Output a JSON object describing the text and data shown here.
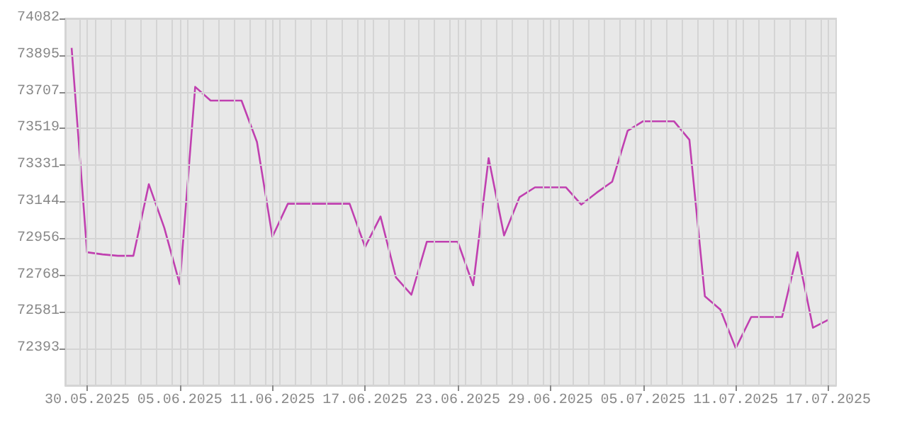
{
  "chart_data": {
    "type": "line",
    "x": [
      "2025-05-29",
      "2025-05-30",
      "2025-05-31",
      "2025-06-01",
      "2025-06-02",
      "2025-06-03",
      "2025-06-04",
      "2025-06-05",
      "2025-06-06",
      "2025-06-07",
      "2025-06-08",
      "2025-06-09",
      "2025-06-10",
      "2025-06-11",
      "2025-06-12",
      "2025-06-13",
      "2025-06-14",
      "2025-06-15",
      "2025-06-16",
      "2025-06-17",
      "2025-06-18",
      "2025-06-19",
      "2025-06-20",
      "2025-06-21",
      "2025-06-22",
      "2025-06-23",
      "2025-06-24",
      "2025-06-25",
      "2025-06-26",
      "2025-06-27",
      "2025-06-28",
      "2025-06-29",
      "2025-06-30",
      "2025-07-01",
      "2025-07-02",
      "2025-07-03",
      "2025-07-04",
      "2025-07-05",
      "2025-07-06",
      "2025-07-07",
      "2025-07-08",
      "2025-07-09",
      "2025-07-10",
      "2025-07-11",
      "2025-07-12",
      "2025-07-13",
      "2025-07-14",
      "2025-07-15",
      "2025-07-16",
      "2025-07-17"
    ],
    "series": [
      {
        "color": "#c040b0",
        "values": [
          73931,
          72886,
          72875,
          72868,
          72868,
          73234,
          73011,
          72723,
          73732,
          73662,
          73662,
          73662,
          73450,
          72965,
          73134,
          73134,
          73134,
          73134,
          73134,
          72913,
          73069,
          72757,
          72669,
          72940,
          72940,
          72940,
          72717,
          73367,
          72972,
          73168,
          73218,
          73218,
          73218,
          73130,
          73191,
          73247,
          73507,
          73556,
          73556,
          73556,
          73461,
          72661,
          72593,
          72395,
          72555,
          72555,
          72555,
          72886,
          72500,
          72541
        ]
      }
    ],
    "xlim": [
      "2025-05-28T14:00",
      "2025-07-17T12:00"
    ],
    "xticks": [
      {
        "value": "2025-05-30",
        "label": "30.05.2025"
      },
      {
        "value": "2025-06-05",
        "label": "05.06.2025"
      },
      {
        "value": "2025-06-11",
        "label": "11.06.2025"
      },
      {
        "value": "2025-06-17",
        "label": "17.06.2025"
      },
      {
        "value": "2025-06-23",
        "label": "23.06.2025"
      },
      {
        "value": "2025-06-29",
        "label": "29.06.2025"
      },
      {
        "value": "2025-07-05",
        "label": "05.07.2025"
      },
      {
        "value": "2025-07-11",
        "label": "11.07.2025"
      },
      {
        "value": "2025-07-17",
        "label": "17.07.2025"
      },
      {
        "value": "2025-05-29T12:00",
        "label": null
      },
      {
        "value": "2025-05-30T12:00",
        "label": null
      },
      {
        "value": "2025-05-31T12:00",
        "label": null
      },
      {
        "value": "2025-06-01T12:00",
        "label": null
      },
      {
        "value": "2025-06-02T12:00",
        "label": null
      },
      {
        "value": "2025-06-03T12:00",
        "label": null
      },
      {
        "value": "2025-06-04T12:00",
        "label": null
      },
      {
        "value": "2025-06-05T12:00",
        "label": null
      },
      {
        "value": "2025-06-06T12:00",
        "label": null
      },
      {
        "value": "2025-06-07T12:00",
        "label": null
      },
      {
        "value": "2025-06-08T12:00",
        "label": null
      },
      {
        "value": "2025-06-09T12:00",
        "label": null
      },
      {
        "value": "2025-06-10T12:00",
        "label": null
      },
      {
        "value": "2025-06-11T12:00",
        "label": null
      },
      {
        "value": "2025-06-12T12:00",
        "label": null
      },
      {
        "value": "2025-06-13T12:00",
        "label": null
      },
      {
        "value": "2025-06-14T12:00",
        "label": null
      },
      {
        "value": "2025-06-15T12:00",
        "label": null
      },
      {
        "value": "2025-06-16T12:00",
        "label": null
      },
      {
        "value": "2025-06-17T12:00",
        "label": null
      },
      {
        "value": "2025-06-18T12:00",
        "label": null
      },
      {
        "value": "2025-06-19T12:00",
        "label": null
      },
      {
        "value": "2025-06-20T12:00",
        "label": null
      },
      {
        "value": "2025-06-21T12:00",
        "label": null
      },
      {
        "value": "2025-06-22T12:00",
        "label": null
      },
      {
        "value": "2025-06-23T12:00",
        "label": null
      },
      {
        "value": "2025-06-24T12:00",
        "label": null
      },
      {
        "value": "2025-06-25T12:00",
        "label": null
      },
      {
        "value": "2025-06-26T12:00",
        "label": null
      },
      {
        "value": "2025-06-27T12:00",
        "label": null
      },
      {
        "value": "2025-06-28T12:00",
        "label": null
      },
      {
        "value": "2025-06-29T12:00",
        "label": null
      },
      {
        "value": "2025-06-30T12:00",
        "label": null
      },
      {
        "value": "2025-07-01T12:00",
        "label": null
      },
      {
        "value": "2025-07-02T12:00",
        "label": null
      },
      {
        "value": "2025-07-03T12:00",
        "label": null
      },
      {
        "value": "2025-07-04T12:00",
        "label": null
      },
      {
        "value": "2025-07-05T12:00",
        "label": null
      },
      {
        "value": "2025-07-06T12:00",
        "label": null
      },
      {
        "value": "2025-07-07T12:00",
        "label": null
      },
      {
        "value": "2025-07-08T12:00",
        "label": null
      },
      {
        "value": "2025-07-09T12:00",
        "label": null
      },
      {
        "value": "2025-07-10T12:00",
        "label": null
      },
      {
        "value": "2025-07-11T12:00",
        "label": null
      },
      {
        "value": "2025-07-12T12:00",
        "label": null
      },
      {
        "value": "2025-07-13T12:00",
        "label": null
      },
      {
        "value": "2025-07-14T12:00",
        "label": null
      },
      {
        "value": "2025-07-15T12:00",
        "label": null
      },
      {
        "value": "2025-07-16T12:00",
        "label": null
      }
    ],
    "ylim": [
      72205.3,
      74082
    ],
    "yticks": [
      72393,
      72581,
      72768,
      72956,
      73144,
      73331,
      73519,
      73707,
      73895,
      74082
    ],
    "grid": true,
    "marker": "none",
    "line_style": "solid"
  }
}
